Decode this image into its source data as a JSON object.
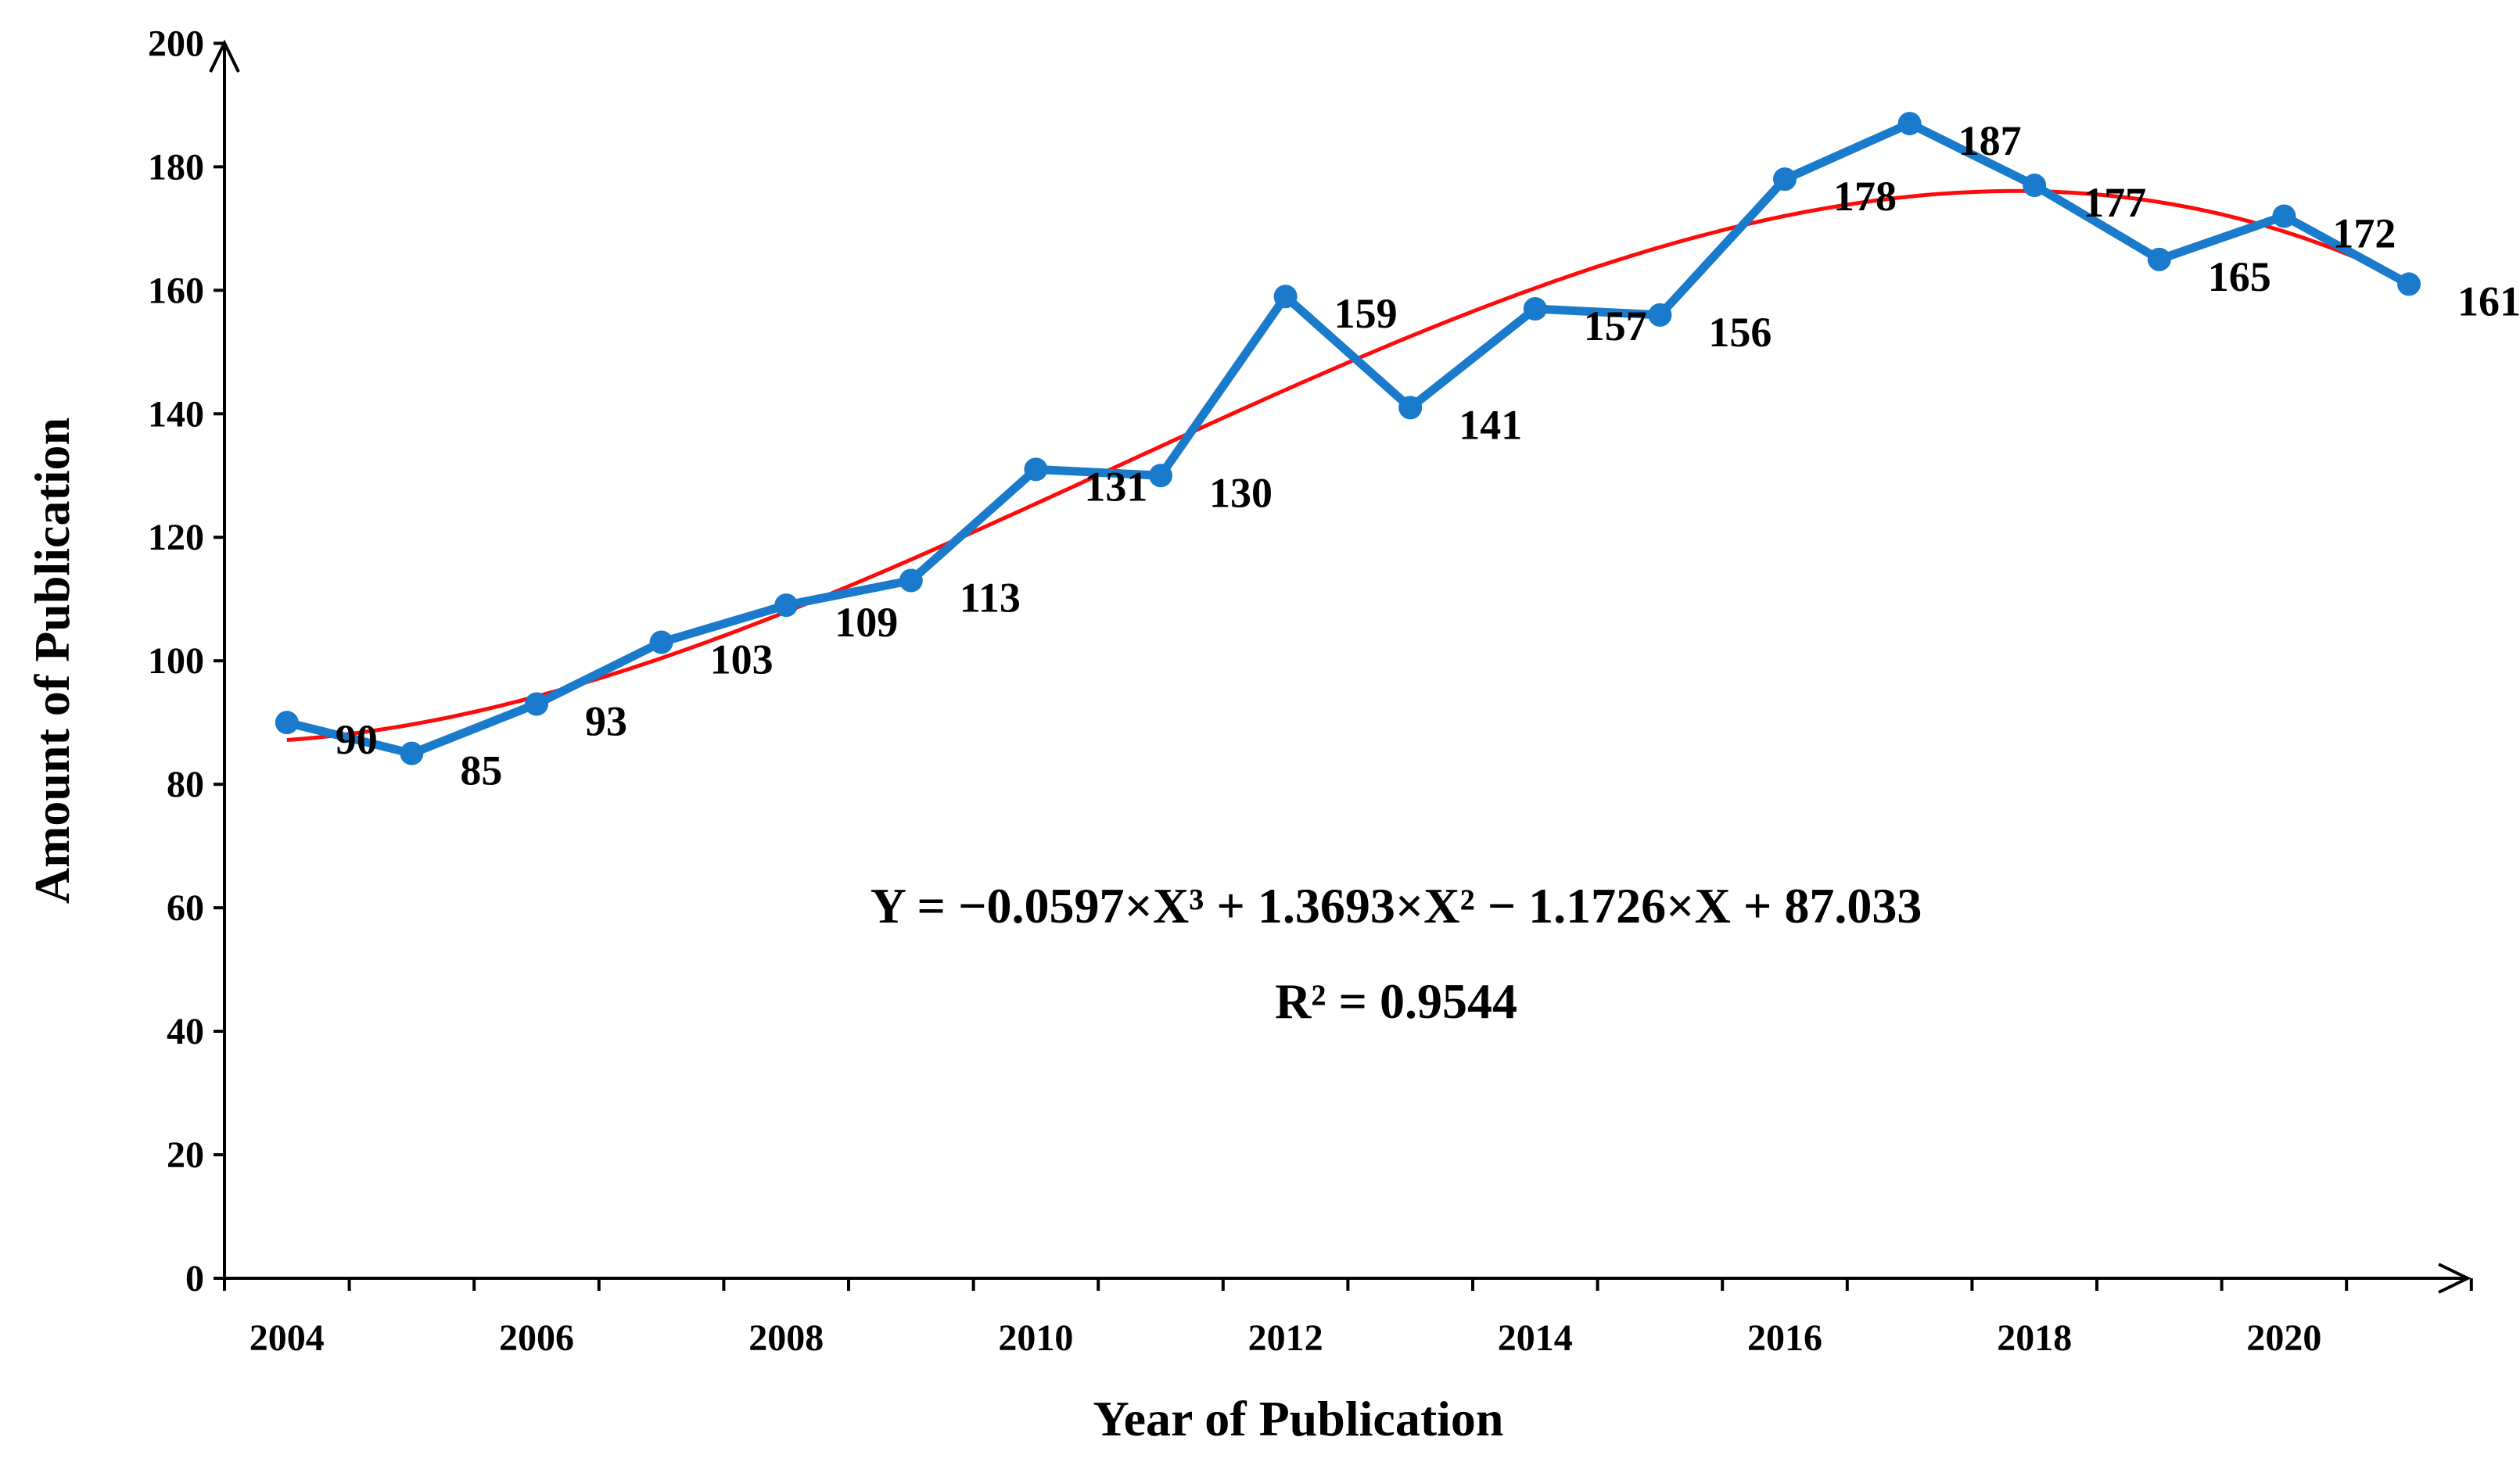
{
  "chart_data": {
    "type": "line",
    "xlabel": "Year of Publication",
    "ylabel": "Amount of Publication",
    "ylim": [
      0,
      200
    ],
    "y_ticks": [
      0,
      20,
      40,
      60,
      80,
      100,
      120,
      140,
      160,
      180,
      200
    ],
    "x_ticks": [
      2004,
      2006,
      2008,
      2010,
      2012,
      2014,
      2016,
      2018,
      2020
    ],
    "x_tick_labels": [
      "2004",
      "2006",
      "2008",
      "2010",
      "2012",
      "2014",
      "2016",
      "2018",
      "2020"
    ],
    "y_tick_labels": [
      "0",
      "20",
      "40",
      "60",
      "80",
      "100",
      "120",
      "140",
      "160",
      "180",
      "200"
    ],
    "years": [
      2004,
      2005,
      2006,
      2007,
      2008,
      2009,
      2010,
      2011,
      2012,
      2013,
      2014,
      2015,
      2016,
      2017,
      2018,
      2019,
      2020,
      2021
    ],
    "series": [
      {
        "name": "Amount of Publication",
        "color": "#1a7acb",
        "values": [
          90,
          85,
          93,
          103,
          109,
          113,
          131,
          130,
          159,
          141,
          157,
          156,
          178,
          187,
          177,
          165,
          172,
          161
        ],
        "labels": [
          "90",
          "85",
          "93",
          "103",
          "109",
          "113",
          "131",
          "130",
          "159",
          "141",
          "157",
          "156",
          "178",
          "187",
          "177",
          "165",
          "172",
          "161"
        ]
      }
    ],
    "trendline": {
      "type": "polynomial",
      "order": 3,
      "color": "#ff0a0a",
      "coefficients": {
        "a3": -0.0597,
        "a2": 1.3693,
        "a1": -1.1726,
        "a0": 87.033
      },
      "equation_text": "Y = −0.0597×X³ + 1.3693×X² − 1.1726×X + 87.033",
      "r2_text": "R² = 0.9544"
    }
  }
}
